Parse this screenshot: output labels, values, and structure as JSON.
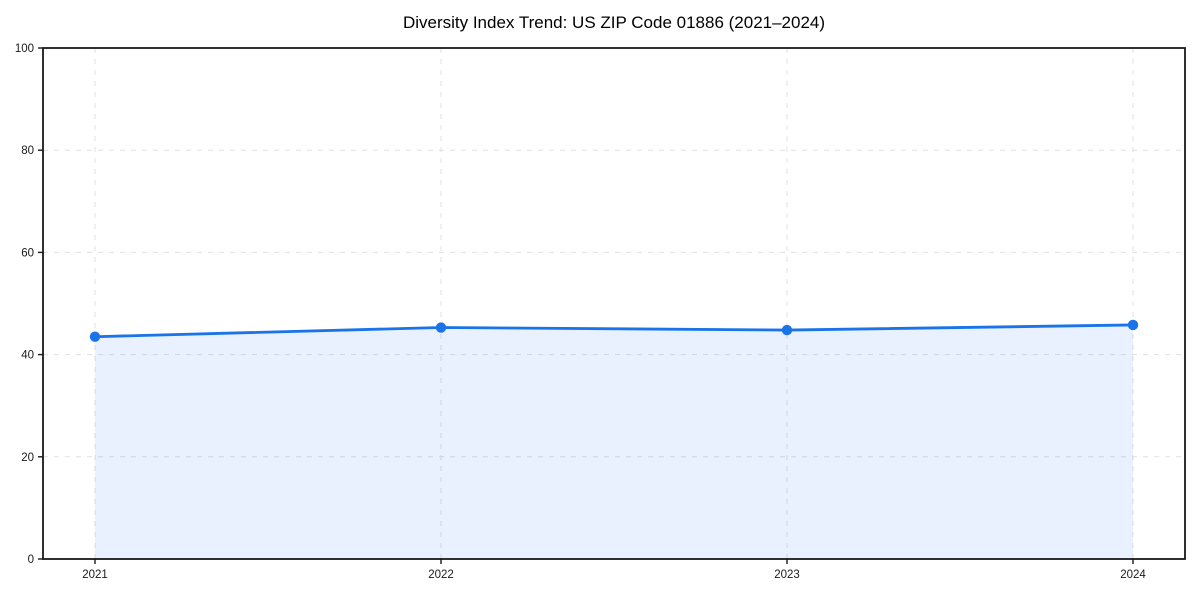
{
  "chart_data": {
    "type": "area",
    "title": "Diversity Index Trend: US ZIP Code 01886 (2021–2024)",
    "series_name": "Diversity Index",
    "categories": [
      "2021",
      "2022",
      "2023",
      "2024"
    ],
    "values": [
      43.5,
      45.3,
      44.8,
      45.8
    ],
    "xlabel": "",
    "ylabel": "",
    "ylim": [
      0,
      100
    ],
    "yticks": [
      0,
      20,
      40,
      60,
      80,
      100
    ],
    "grid": "dashed",
    "legend": "none",
    "colors": {
      "line": "#1a73e8",
      "marker": "#1a73e8",
      "fill": "rgba(26,115,232,0.10)",
      "gridline": "#e0e0e0",
      "spine": "#1a1a1a",
      "tick_text": "#1a1a1a",
      "title_text": "#000000",
      "background": "#ffffff"
    }
  }
}
